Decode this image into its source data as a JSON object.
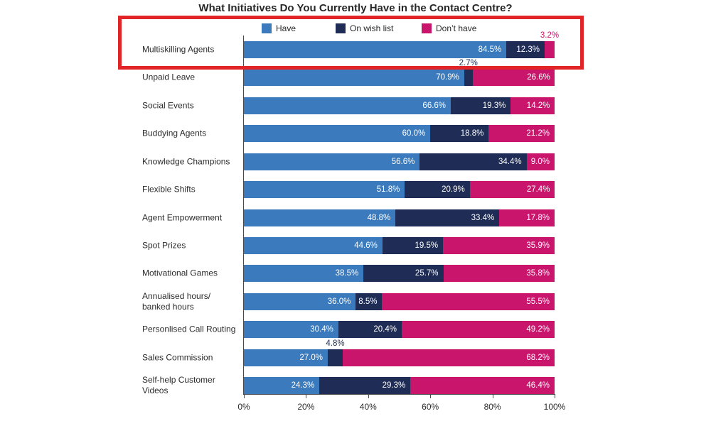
{
  "chart_data": {
    "type": "bar",
    "orientation": "horizontal",
    "stacked": true,
    "title": "What Initiatives Do You Currently Have in the Contact Centre?",
    "categories": [
      "Multiskilling Agents",
      "Unpaid Leave",
      "Social Events",
      "Buddying Agents",
      "Knowledge Champions",
      "Flexible Shifts",
      "Agent Empowerment",
      "Spot Prizes",
      "Motivational Games",
      "Annualised hours/\nbanked hours",
      "Personlised Call Routing",
      "Sales Commission",
      "Self-help Customer\nVideos"
    ],
    "series": [
      {
        "name": "Have",
        "color": "#3A7ABD",
        "values": [
          84.5,
          70.9,
          66.6,
          60.0,
          56.6,
          51.8,
          48.8,
          44.6,
          38.5,
          36.0,
          30.4,
          27.0,
          24.3
        ]
      },
      {
        "name": "On wish list",
        "color": "#1F2C55",
        "values": [
          12.3,
          2.7,
          19.3,
          18.8,
          34.4,
          20.9,
          33.4,
          19.5,
          25.7,
          8.5,
          20.4,
          4.8,
          29.3
        ]
      },
      {
        "name": "Don’t have",
        "color": "#C9156C",
        "values": [
          3.2,
          26.6,
          14.2,
          21.2,
          9.0,
          27.4,
          17.8,
          35.9,
          35.8,
          55.5,
          49.2,
          68.2,
          46.4
        ]
      }
    ],
    "x_ticks": [
      "0%",
      "20%",
      "40%",
      "60%",
      "80%",
      "100%"
    ],
    "xlim": [
      0,
      100
    ],
    "xlabel": "",
    "ylabel": "",
    "grid": false,
    "legend_position": "top",
    "value_label_style": "inside end, white, one decimal with % suffix; segments smaller than 6% labelled above the bar in the segment colour"
  },
  "annotation_box": {
    "color": "#E02428",
    "highlighted_row": "Multiskilling Agents",
    "covers": "legend and first bar row"
  }
}
